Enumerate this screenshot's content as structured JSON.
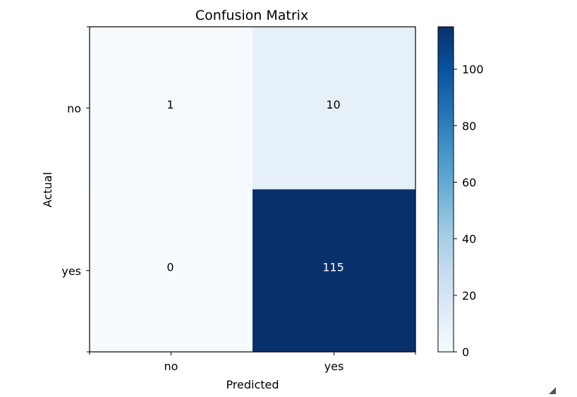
{
  "chart_data": {
    "type": "heatmap",
    "title": "Confusion Matrix",
    "xlabel": "Predicted",
    "ylabel": "Actual",
    "x_categories": [
      "no",
      "yes"
    ],
    "y_categories": [
      "no",
      "yes"
    ],
    "values": [
      [
        1,
        10
      ],
      [
        0,
        115
      ]
    ],
    "colormap": "Blues",
    "colorbar": {
      "ticks": [
        0,
        20,
        40,
        60,
        80,
        100
      ],
      "range": [
        0,
        115
      ]
    },
    "grid": false
  },
  "colors": {
    "cmap_low": "#f7fbff",
    "cmap_mid": "#6baed6",
    "cmap_high": "#08306b",
    "text_dark": "#000000",
    "text_light": "#ffffff"
  },
  "icons": {
    "resize": "resize-grip-icon"
  }
}
